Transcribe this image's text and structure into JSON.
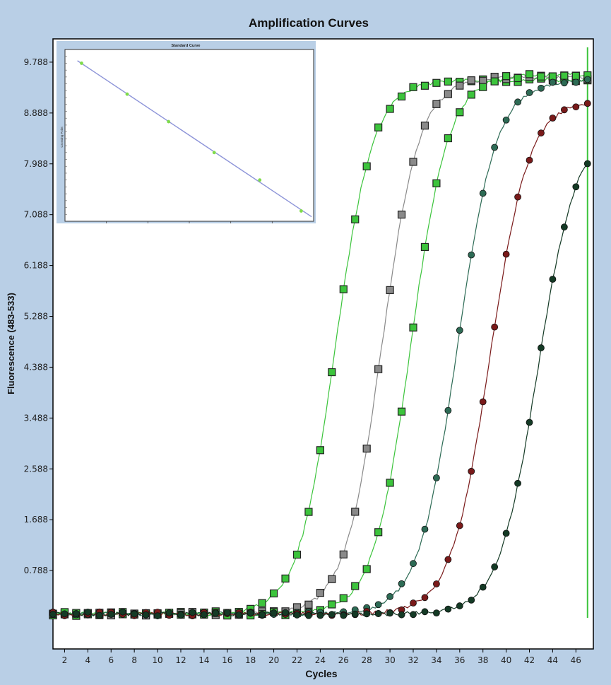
{
  "chart_data": [
    {
      "type": "line",
      "title": "Amplification Curves",
      "xlabel": "Cycles",
      "ylabel": "Fluorescence (483-533)",
      "xlim": [
        1,
        47.5
      ],
      "ylim": [
        -0.6,
        10.2
      ],
      "x_ticks": [
        2,
        4,
        6,
        8,
        10,
        12,
        14,
        16,
        18,
        20,
        22,
        24,
        26,
        28,
        30,
        32,
        34,
        36,
        38,
        40,
        42,
        44,
        46
      ],
      "x_tick_labels": [
        "2",
        "4",
        "6",
        "8",
        "10",
        "12",
        "14",
        "16",
        "18",
        "20",
        "22",
        "24",
        "26",
        "28",
        "30",
        "32",
        "34",
        "36",
        "38",
        "40",
        "42",
        "44",
        "46"
      ],
      "y_ticks": [
        0.788,
        1.688,
        2.588,
        3.488,
        4.388,
        5.288,
        6.188,
        7.088,
        7.988,
        8.888,
        9.788
      ],
      "y_tick_labels": [
        "0.788",
        "1.688",
        "2.588",
        "3.488",
        "4.388",
        "5.288",
        "6.188",
        "7.088",
        "7.988",
        "8.888",
        "9.788"
      ],
      "grid": false,
      "threshold_x": 47,
      "series": [
        {
          "marker": "square",
          "color": "#3cc43c",
          "midpoint": 25.3,
          "slope": 0.62,
          "plateau": 9.45
        },
        {
          "marker": "square",
          "color": "#8a8a8a",
          "midpoint": 29.3,
          "slope": 0.62,
          "plateau": 9.5
        },
        {
          "marker": "square",
          "color": "#3cc43c",
          "midpoint": 31.8,
          "slope": 0.62,
          "plateau": 9.55
        },
        {
          "marker": "circle",
          "color": "#2d6b55",
          "midpoint": 35.8,
          "slope": 0.6,
          "plateau": 9.45
        },
        {
          "marker": "circle",
          "color": "#7a1a1a",
          "midpoint": 38.6,
          "slope": 0.6,
          "plateau": 9.1
        },
        {
          "marker": "circle",
          "color": "#143a25",
          "midpoint": 42.7,
          "slope": 0.6,
          "plateau": 8.6
        }
      ]
    },
    {
      "type": "scatter",
      "title": "Standard Curve",
      "ylabel": "Crossing Point",
      "x": [
        0.4,
        1.5,
        2.5,
        3.6,
        4.7,
        5.7
      ],
      "y": [
        40,
        35.5,
        31.5,
        27,
        23,
        18.5
      ],
      "xlim": [
        0,
        6
      ],
      "ylim": [
        17,
        42
      ],
      "trendline": true,
      "point_color": "#7fdc4a",
      "line_color": "#8c93d8"
    }
  ]
}
